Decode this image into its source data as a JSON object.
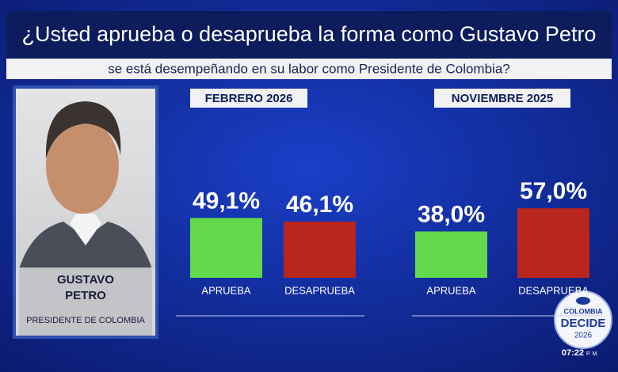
{
  "title": "¿Usted aprueba o desaprueba la forma como Gustavo Petro",
  "subtitle": "se está desempeñando en su labor como Presidente de Colombia?",
  "person": {
    "name_lines": [
      "GUSTAVO",
      "PETRO"
    ],
    "role": "PRESIDENTE DE COLOMBIA"
  },
  "logo": {
    "line1": "COLOMBIA",
    "line2": "DECIDE",
    "year": "2026"
  },
  "clock": {
    "time": "07:22",
    "suffix": "P. M."
  },
  "chart_data": [
    {
      "type": "bar",
      "title": "FEBRERO 2026",
      "categories": [
        "APRUEBA",
        "DESAPRUEBA"
      ],
      "values": [
        49.1,
        46.1
      ],
      "value_labels": [
        "49,1%",
        "46,1%"
      ],
      "colors": [
        "#62d94a",
        "#b8261c"
      ]
    },
    {
      "type": "bar",
      "title": "NOVIEMBRE 2025",
      "categories": [
        "APRUEBA",
        "DESAPRUEBA"
      ],
      "values": [
        38.0,
        57.0
      ],
      "value_labels": [
        "38,0%",
        "57,0%"
      ],
      "colors": [
        "#62d94a",
        "#b8261c"
      ]
    }
  ]
}
